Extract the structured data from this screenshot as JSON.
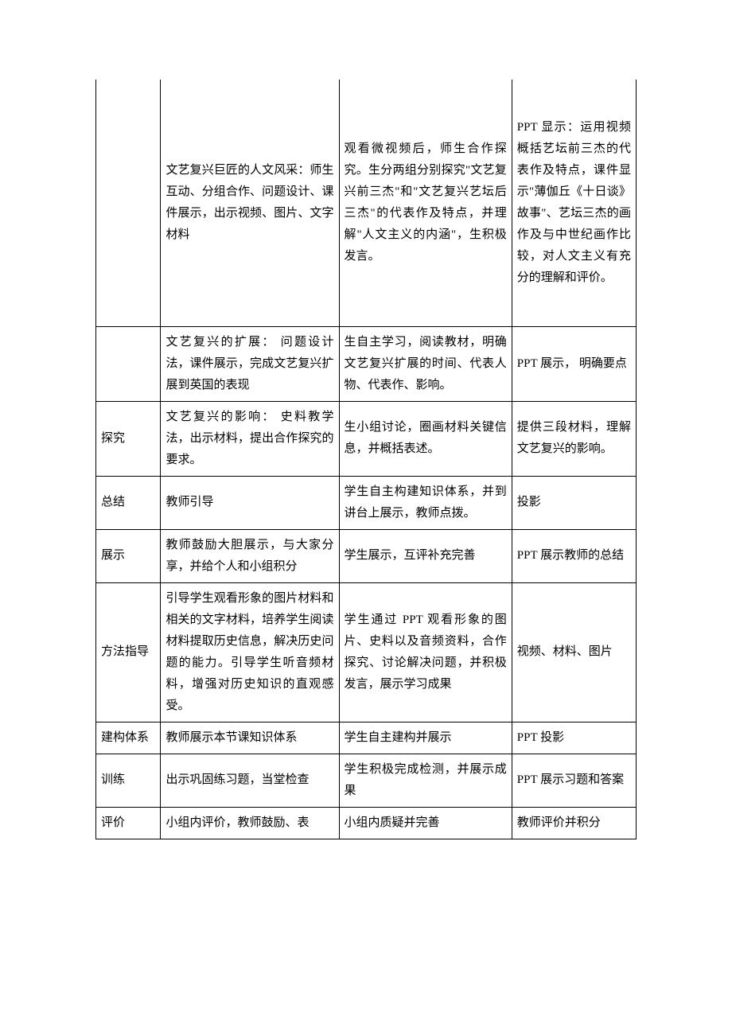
{
  "table": {
    "border_color": "#000000",
    "text_color": "#000000",
    "background_color": "#ffffff",
    "font_family": "SimSun",
    "font_size_pt": 11,
    "line_height": 1.8,
    "column_widths_pct": [
      12,
      33,
      32,
      23
    ],
    "rows": [
      {
        "c1": "",
        "c2": "文艺复兴巨匠的人文风采：师生互动、分组合作、问题设计、课件展示，出示视频、图片、文字材料",
        "c3": "观看微视频后，师生合作探究。生分两组分别探究\"文艺复兴前三杰\"和\"文艺复兴艺坛后三杰\"的代表作及特点，并理解\"人文主义的内涵\"，生积极发言。",
        "c4": "PPT 显示：运用视频概括艺坛前三杰的代表作及特点，课件显示\"薄伽丘《十日谈》故事\"、艺坛三杰的画作及与中世纪画作比较，对人文主义有充分的理解和评价。"
      },
      {
        "c1": "",
        "c2": "文艺复兴的扩展：\n问题设计法，课件展示，完成文艺复兴扩展到英国的表现",
        "c3": "生自主学习，阅读教材，明确文艺复兴扩展的时间、代表人物、代表作、影响。",
        "c4": "PPT 展示， 明确要点"
      },
      {
        "c1": "探究",
        "c2": "文艺复兴的影响：\n史料教学法，出示材料，提出合作探究的要求。",
        "c3": "生小组讨论，圈画材料关键信息，并概括表述。",
        "c4": "提供三段材料，理解文艺复兴的影响。"
      },
      {
        "c1": "总结",
        "c2": "教师引导",
        "c3": "学生自主构建知识体系，并到讲台上展示，教师点拨。",
        "c4": "投影"
      },
      {
        "c1": "展示",
        "c2": "教师鼓励大胆展示，与大家分享，并给个人和小组积分",
        "c3": "学生展示，互评补充完善",
        "c4": "PPT 展示教师的总结"
      },
      {
        "c1": "方法指导",
        "c2": "引导学生观看形象的图片材料和相关的文字材料，培养学生阅读材料提取历史信息，解决历史问题的能力。引导学生听音频材料，增强对历史知识的直观感受。",
        "c3": "学生通过 PPT 观看形象的图片、史料以及音频资料，合作探究、讨论解决问题，并积极发言，展示学习成果",
        "c4": "视频、材料、图片"
      },
      {
        "c1": "建构体系",
        "c2": "教师展示本节课知识体系",
        "c3": "学生自主建构并展示",
        "c4": "PPT 投影"
      },
      {
        "c1": "训练",
        "c2": "出示巩固练习题，当堂检查",
        "c3": "学生积极完成检测，并展示成果",
        "c4": "PPT 展示习题和答案"
      },
      {
        "c1": "评价",
        "c2": "小组内评价，教师鼓励、表",
        "c3": "小组内质疑并完善",
        "c4": "教师评价并积分"
      }
    ]
  }
}
